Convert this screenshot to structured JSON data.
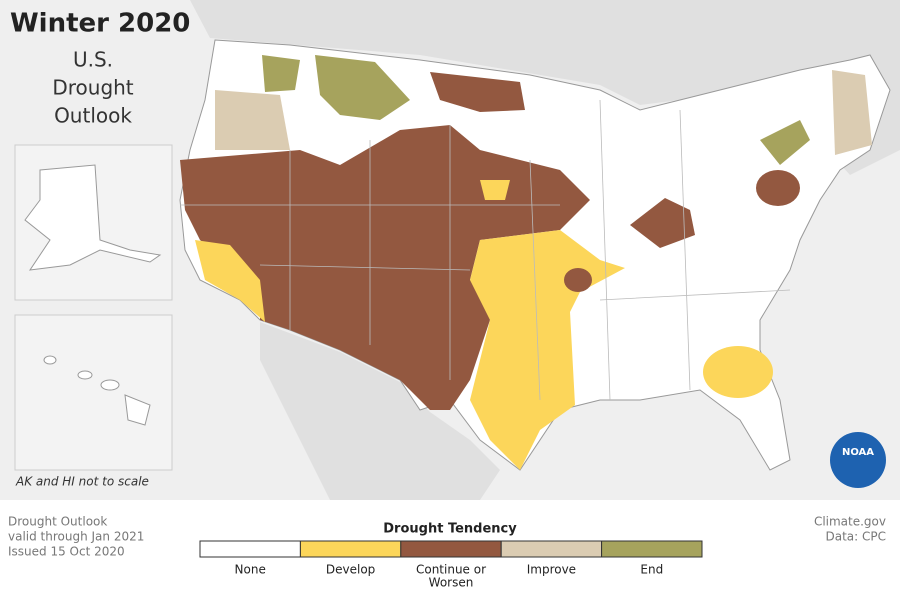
{
  "header": {
    "title": "Winter 2020",
    "subtitle_lines": [
      "U.S.",
      "Drought",
      "Outlook"
    ]
  },
  "inset_note": "AK and HI not to scale",
  "footer": {
    "left_lines": [
      "Drought Outlook",
      "valid through Jan 2021",
      "Issued 15 Oct 2020"
    ],
    "right_lines": [
      "Climate.gov",
      "Data: CPC"
    ]
  },
  "legend": {
    "title": "Drought Tendency",
    "items": [
      {
        "label_lines": [
          "None"
        ],
        "color": "#ffffff"
      },
      {
        "label_lines": [
          "Develop"
        ],
        "color": "#fcd65a"
      },
      {
        "label_lines": [
          "Continue or",
          "Worsen"
        ],
        "color": "#935840"
      },
      {
        "label_lines": [
          "Improve"
        ],
        "color": "#dbccb2"
      },
      {
        "label_lines": [
          "End"
        ],
        "color": "#a6a35d"
      }
    ]
  },
  "logo": "NOAA"
}
